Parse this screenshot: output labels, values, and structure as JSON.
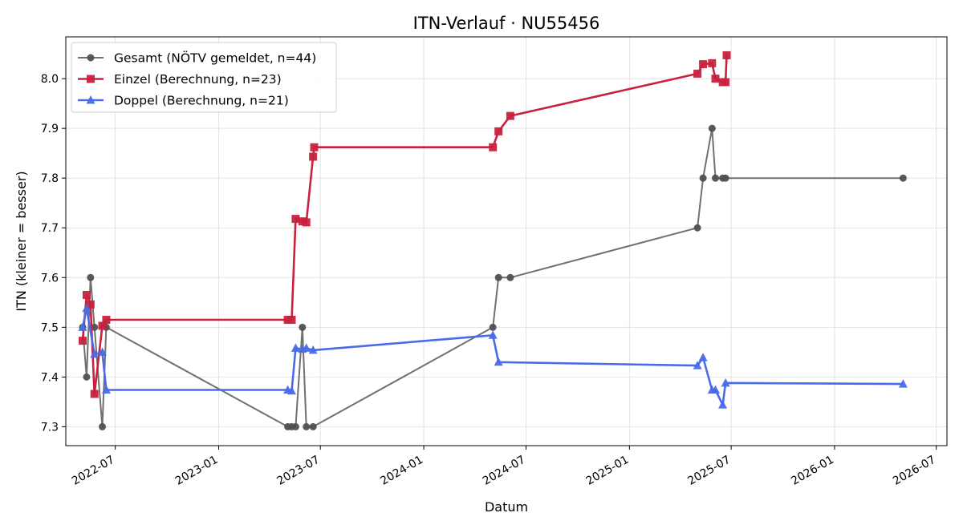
{
  "chart_data": {
    "type": "line",
    "title": "ITN-Verlauf · NU55456",
    "xlabel": "Datum",
    "ylabel": "ITN  (kleiner = besser)",
    "grid": true,
    "legend_position": "top-left",
    "xlim": [
      "2022-04-04",
      "2026-07-20"
    ],
    "ylim": [
      7.262,
      8.084
    ],
    "x_ticks": [
      "2022-07",
      "2023-01",
      "2023-07",
      "2024-01",
      "2024-07",
      "2025-01",
      "2025-07",
      "2026-01",
      "2026-07"
    ],
    "y_ticks": [
      "7.3",
      "7.4",
      "7.5",
      "7.6",
      "7.7",
      "7.8",
      "7.9",
      "8.0"
    ],
    "series": [
      {
        "name": "Gesamt (NÖTV gemeldet, n=44)",
        "color": "#707070",
        "marker": "circle",
        "x": [
          "2022-05-04",
          "2022-05-11",
          "2022-05-18",
          "2022-05-25",
          "2022-06-08",
          "2022-06-15",
          "2023-05-04",
          "2023-05-11",
          "2023-05-18",
          "2023-05-30",
          "2023-06-06",
          "2023-06-18",
          "2024-05-03",
          "2024-05-13",
          "2024-06-03",
          "2025-05-02",
          "2025-05-12",
          "2025-05-28",
          "2025-06-03",
          "2025-06-16",
          "2025-06-21",
          "2026-05-03"
        ],
        "y": [
          7.5,
          7.4,
          7.6,
          7.5,
          7.3,
          7.5,
          7.3,
          7.3,
          7.3,
          7.5,
          7.3,
          7.3,
          7.5,
          7.6,
          7.6,
          7.7,
          7.8,
          7.9,
          7.8,
          7.8,
          7.8,
          7.8
        ]
      },
      {
        "name": "Einzel (Berechnung, n=23)",
        "color": "#C8213E",
        "marker": "square",
        "x": [
          "2022-05-04",
          "2022-05-11",
          "2022-05-18",
          "2022-05-25",
          "2022-06-08",
          "2022-06-15",
          "2023-05-04",
          "2023-05-11",
          "2023-05-18",
          "2023-05-30",
          "2023-06-06",
          "2023-06-18",
          "2023-06-20",
          "2024-05-03",
          "2024-05-13",
          "2024-06-03",
          "2025-05-02",
          "2025-05-12",
          "2025-05-28",
          "2025-06-03",
          "2025-06-16",
          "2025-06-21",
          "2025-06-23"
        ],
        "y": [
          7.473,
          7.565,
          7.546,
          7.366,
          7.503,
          7.515,
          7.515,
          7.515,
          7.718,
          7.713,
          7.711,
          7.843,
          7.862,
          7.862,
          7.894,
          7.925,
          8.01,
          8.029,
          8.031,
          8.0,
          7.993,
          7.993,
          8.047
        ]
      },
      {
        "name": "Doppel (Berechnung, n=21)",
        "color": "#4A6BE8",
        "marker": "triangle",
        "x": [
          "2022-05-04",
          "2022-05-11",
          "2022-05-25",
          "2022-06-08",
          "2022-06-15",
          "2023-05-04",
          "2023-05-11",
          "2023-05-18",
          "2023-05-30",
          "2023-06-06",
          "2023-06-18",
          "2024-05-03",
          "2024-05-13",
          "2025-05-02",
          "2025-05-12",
          "2025-05-28",
          "2025-06-03",
          "2025-06-16",
          "2025-06-21",
          "2026-05-03"
        ],
        "y": [
          7.5,
          7.538,
          7.446,
          7.45,
          7.374,
          7.374,
          7.372,
          7.458,
          7.456,
          7.458,
          7.454,
          7.484,
          7.43,
          7.423,
          7.439,
          7.374,
          7.374,
          7.344,
          7.388,
          7.386
        ]
      }
    ]
  }
}
